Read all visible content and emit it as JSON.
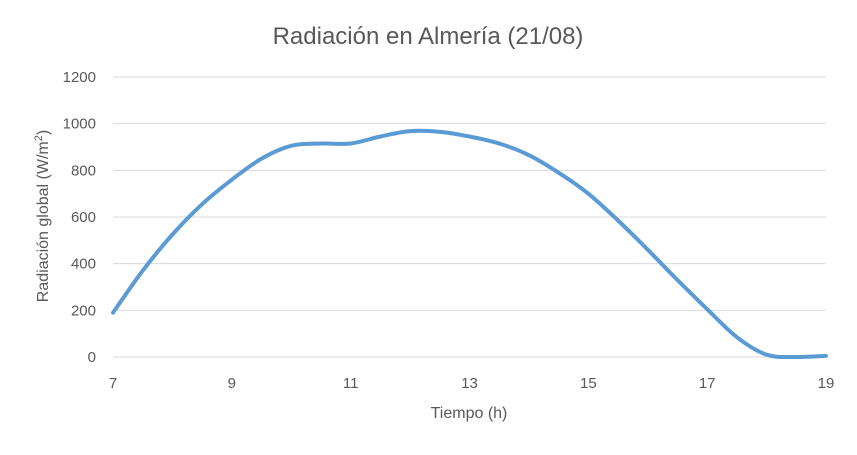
{
  "chart_data": {
    "type": "line",
    "title": "Radiación en Almería (21/08)",
    "xlabel": "Tiempo (h)",
    "ylabel_main": "Radiación global (W/m",
    "ylabel_sup": "2",
    "ylabel_end": ")",
    "xlim": [
      7,
      19
    ],
    "ylim": [
      0,
      1200
    ],
    "x_ticks": [
      "7",
      "9",
      "11",
      "13",
      "15",
      "17",
      "19"
    ],
    "y_ticks": [
      "0",
      "200",
      "400",
      "600",
      "800",
      "1000",
      "1200"
    ],
    "grid": "horizontal",
    "line_color": "#5b9bd5",
    "series": [
      {
        "x": [
          7,
          7.5,
          8,
          8.5,
          9,
          9.5,
          10,
          10.5,
          11,
          11.5,
          12,
          12.5,
          13,
          13.5,
          14,
          14.5,
          15,
          15.5,
          16,
          16.5,
          17,
          17.5,
          18,
          18.5,
          19
        ],
        "values": [
          190,
          370,
          525,
          655,
          760,
          850,
          905,
          915,
          915,
          945,
          968,
          965,
          945,
          915,
          865,
          790,
          700,
          585,
          460,
          330,
          205,
          85,
          10,
          0,
          5
        ]
      }
    ]
  }
}
